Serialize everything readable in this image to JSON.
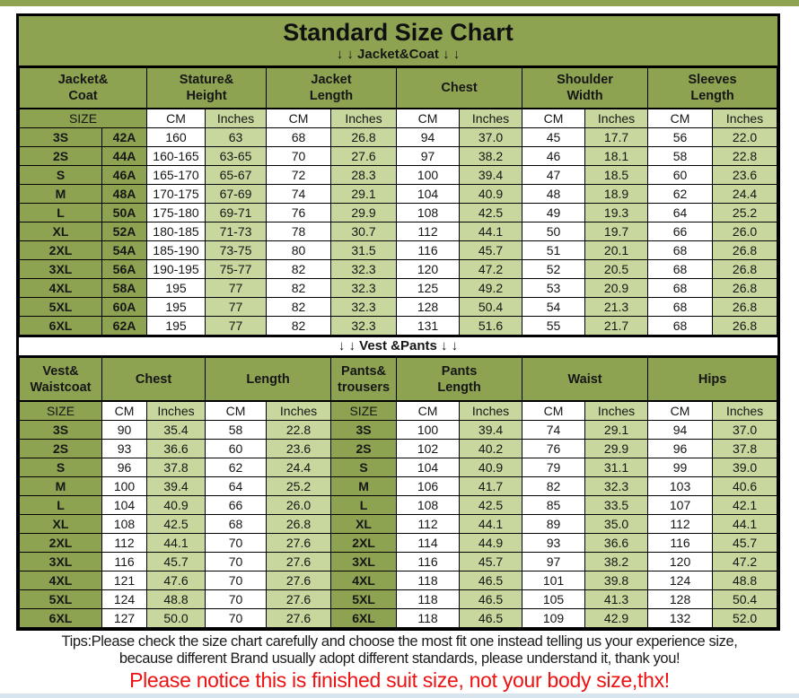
{
  "header": {
    "title": "Standard Size Chart",
    "jacket_arrows": "↓ ↓  Jacket&Coat ↓ ↓",
    "vest_arrows": "↓ ↓  Vest &Pants ↓ ↓"
  },
  "footer": {
    "tips_line1": "Tips:Please check the size chart carefully and choose the most fit one instead telling us your experience size,",
    "tips_line2": "because different Brand usually adopt different standards, please understand it, thank you!",
    "notice": "Please notice this is finished suit size, not your body size,thx!"
  },
  "colors": {
    "olive": "#8da351",
    "light_green": "#c7d79d",
    "notice_red": "#ee1111",
    "bottom_strip": "#d9e5ee"
  },
  "chart_data": [
    {
      "type": "table",
      "title": "Jacket&Coat",
      "group_headers": [
        {
          "label": "Jacket&\nCoat",
          "span": 2
        },
        {
          "label": "Stature&\nHeight",
          "span": 2
        },
        {
          "label": "Jacket\nLength",
          "span": 2
        },
        {
          "label": "Chest",
          "span": 2
        },
        {
          "label": "Shoulder\nWidth",
          "span": 2
        },
        {
          "label": "Sleeves\nLength",
          "span": 2
        }
      ],
      "unit_row": [
        "SIZE",
        "CM",
        "Inches",
        "CM",
        "Inches",
        "CM",
        "Inches",
        "CM",
        "Inches",
        "CM",
        "Inches"
      ],
      "rows": [
        {
          "size": "3S",
          "code": "42A",
          "values": [
            "160",
            "63",
            "68",
            "26.8",
            "94",
            "37.0",
            "45",
            "17.7",
            "56",
            "22.0"
          ]
        },
        {
          "size": "2S",
          "code": "44A",
          "values": [
            "160-165",
            "63-65",
            "70",
            "27.6",
            "97",
            "38.2",
            "46",
            "18.1",
            "58",
            "22.8"
          ]
        },
        {
          "size": "S",
          "code": "46A",
          "values": [
            "165-170",
            "65-67",
            "72",
            "28.3",
            "100",
            "39.4",
            "47",
            "18.5",
            "60",
            "23.6"
          ]
        },
        {
          "size": "M",
          "code": "48A",
          "values": [
            "170-175",
            "67-69",
            "74",
            "29.1",
            "104",
            "40.9",
            "48",
            "18.9",
            "62",
            "24.4"
          ]
        },
        {
          "size": "L",
          "code": "50A",
          "values": [
            "175-180",
            "69-71",
            "76",
            "29.9",
            "108",
            "42.5",
            "49",
            "19.3",
            "64",
            "25.2"
          ]
        },
        {
          "size": "XL",
          "code": "52A",
          "values": [
            "180-185",
            "71-73",
            "78",
            "30.7",
            "112",
            "44.1",
            "50",
            "19.7",
            "66",
            "26.0"
          ]
        },
        {
          "size": "2XL",
          "code": "54A",
          "values": [
            "185-190",
            "73-75",
            "80",
            "31.5",
            "116",
            "45.7",
            "51",
            "20.1",
            "68",
            "26.8"
          ]
        },
        {
          "size": "3XL",
          "code": "56A",
          "values": [
            "190-195",
            "75-77",
            "82",
            "32.3",
            "120",
            "47.2",
            "52",
            "20.5",
            "68",
            "26.8"
          ]
        },
        {
          "size": "4XL",
          "code": "58A",
          "values": [
            "195",
            "77",
            "82",
            "32.3",
            "125",
            "49.2",
            "53",
            "20.9",
            "68",
            "26.8"
          ]
        },
        {
          "size": "5XL",
          "code": "60A",
          "values": [
            "195",
            "77",
            "82",
            "32.3",
            "128",
            "50.4",
            "54",
            "21.3",
            "68",
            "26.8"
          ]
        },
        {
          "size": "6XL",
          "code": "62A",
          "values": [
            "195",
            "77",
            "82",
            "32.3",
            "131",
            "51.6",
            "55",
            "21.7",
            "68",
            "26.8"
          ]
        }
      ]
    },
    {
      "type": "table",
      "title": "Vest &Pants",
      "group_headers": [
        {
          "label": "Vest&\nWaistcoat",
          "span": 1
        },
        {
          "label": "Chest",
          "span": 2
        },
        {
          "label": "Length",
          "span": 2
        },
        {
          "label": "Pants&\ntrousers",
          "span": 1
        },
        {
          "label": "Pants\nLength",
          "span": 2
        },
        {
          "label": "Waist",
          "span": 2
        },
        {
          "label": "Hips",
          "span": 2
        }
      ],
      "unit_row": [
        "SIZE",
        "CM",
        "Inches",
        "CM",
        "Inches",
        "SIZE",
        "CM",
        "Inches",
        "CM",
        "Inches",
        "CM",
        "Inches"
      ],
      "rows": [
        {
          "vest_size": "3S",
          "vest_values": [
            "90",
            "35.4",
            "58",
            "22.8"
          ],
          "pants_size": "3S",
          "pants_values": [
            "100",
            "39.4",
            "74",
            "29.1",
            "94",
            "37.0"
          ]
        },
        {
          "vest_size": "2S",
          "vest_values": [
            "93",
            "36.6",
            "60",
            "23.6"
          ],
          "pants_size": "2S",
          "pants_values": [
            "102",
            "40.2",
            "76",
            "29.9",
            "96",
            "37.8"
          ]
        },
        {
          "vest_size": "S",
          "vest_values": [
            "96",
            "37.8",
            "62",
            "24.4"
          ],
          "pants_size": "S",
          "pants_values": [
            "104",
            "40.9",
            "79",
            "31.1",
            "99",
            "39.0"
          ]
        },
        {
          "vest_size": "M",
          "vest_values": [
            "100",
            "39.4",
            "64",
            "25.2"
          ],
          "pants_size": "M",
          "pants_values": [
            "106",
            "41.7",
            "82",
            "32.3",
            "103",
            "40.6"
          ]
        },
        {
          "vest_size": "L",
          "vest_values": [
            "104",
            "40.9",
            "66",
            "26.0"
          ],
          "pants_size": "L",
          "pants_values": [
            "108",
            "42.5",
            "85",
            "33.5",
            "107",
            "42.1"
          ]
        },
        {
          "vest_size": "XL",
          "vest_values": [
            "108",
            "42.5",
            "68",
            "26.8"
          ],
          "pants_size": "XL",
          "pants_values": [
            "112",
            "44.1",
            "89",
            "35.0",
            "112",
            "44.1"
          ]
        },
        {
          "vest_size": "2XL",
          "vest_values": [
            "112",
            "44.1",
            "70",
            "27.6"
          ],
          "pants_size": "2XL",
          "pants_values": [
            "114",
            "44.9",
            "93",
            "36.6",
            "116",
            "45.7"
          ]
        },
        {
          "vest_size": "3XL",
          "vest_values": [
            "116",
            "45.7",
            "70",
            "27.6"
          ],
          "pants_size": "3XL",
          "pants_values": [
            "116",
            "45.7",
            "97",
            "38.2",
            "120",
            "47.2"
          ]
        },
        {
          "vest_size": "4XL",
          "vest_values": [
            "121",
            "47.6",
            "70",
            "27.6"
          ],
          "pants_size": "4XL",
          "pants_values": [
            "118",
            "46.5",
            "101",
            "39.8",
            "124",
            "48.8"
          ]
        },
        {
          "vest_size": "5XL",
          "vest_values": [
            "124",
            "48.8",
            "70",
            "27.6"
          ],
          "pants_size": "5XL",
          "pants_values": [
            "118",
            "46.5",
            "105",
            "41.3",
            "128",
            "50.4"
          ]
        },
        {
          "vest_size": "6XL",
          "vest_values": [
            "127",
            "50.0",
            "70",
            "27.6"
          ],
          "pants_size": "6XL",
          "pants_values": [
            "118",
            "46.5",
            "109",
            "42.9",
            "132",
            "52.0"
          ]
        }
      ]
    }
  ]
}
